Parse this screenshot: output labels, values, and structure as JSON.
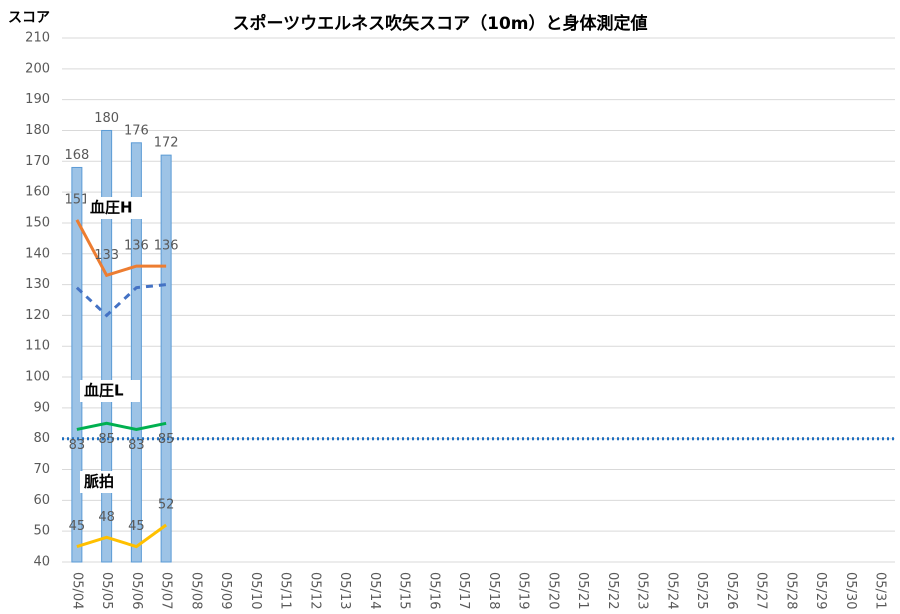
{
  "chart_data": {
    "type": "bar-line",
    "title": "スポーツウエルネス吹矢スコア（10m）と身体測定値",
    "y_axis_label": "スコア",
    "categories": [
      "05/04",
      "05/05",
      "05/06",
      "05/07",
      "05/08",
      "05/09",
      "05/10",
      "05/11",
      "05/12",
      "05/13",
      "05/14",
      "05/15",
      "05/16",
      "05/17",
      "05/18",
      "05/19",
      "05/20",
      "05/21",
      "05/22",
      "05/23",
      "05/24",
      "05/25",
      "05/26",
      "05/27",
      "05/28",
      "05/29",
      "05/30",
      "05/31"
    ],
    "ylim": [
      40,
      210
    ],
    "yticks": [
      40,
      50,
      60,
      70,
      80,
      90,
      100,
      110,
      120,
      130,
      140,
      150,
      160,
      170,
      180,
      190,
      200,
      210
    ],
    "grid": true,
    "reference_line": {
      "value": 80,
      "color": "#1f6fc0"
    },
    "series": [
      {
        "type": "bar",
        "color": "#9dc3e6",
        "values": [
          168,
          180,
          176,
          172,
          null,
          null,
          null,
          null,
          null,
          null,
          null,
          null,
          null,
          null,
          null,
          null,
          null,
          null,
          null,
          null,
          null,
          null,
          null,
          null,
          null,
          null,
          null,
          null
        ]
      },
      {
        "type": "line",
        "name": "血圧H",
        "color": "#ed7d31",
        "label_position": "above",
        "values": [
          151,
          133,
          136,
          136,
          null,
          null,
          null,
          null,
          null,
          null,
          null,
          null,
          null,
          null,
          null,
          null,
          null,
          null,
          null,
          null,
          null,
          null,
          null,
          null,
          null,
          null,
          null,
          null
        ]
      },
      {
        "type": "line",
        "color": "#4472c4",
        "dashed": true,
        "values": [
          129,
          120,
          129,
          130,
          null,
          null,
          null,
          null,
          null,
          null,
          null,
          null,
          null,
          null,
          null,
          null,
          null,
          null,
          null,
          null,
          null,
          null,
          null,
          null,
          null,
          null,
          null,
          null
        ]
      },
      {
        "type": "line",
        "name": "血圧L",
        "color": "#00b050",
        "label_position": "below",
        "values": [
          83,
          85,
          83,
          85,
          null,
          null,
          null,
          null,
          null,
          null,
          null,
          null,
          null,
          null,
          null,
          null,
          null,
          null,
          null,
          null,
          null,
          null,
          null,
          null,
          null,
          null,
          null,
          null
        ]
      },
      {
        "type": "line",
        "name": "脈拍",
        "color": "#ffc000",
        "label_position": "above",
        "values": [
          45,
          48,
          45,
          52,
          null,
          null,
          null,
          null,
          null,
          null,
          null,
          null,
          null,
          null,
          null,
          null,
          null,
          null,
          null,
          null,
          null,
          null,
          null,
          null,
          null,
          null,
          null,
          null
        ]
      }
    ]
  }
}
